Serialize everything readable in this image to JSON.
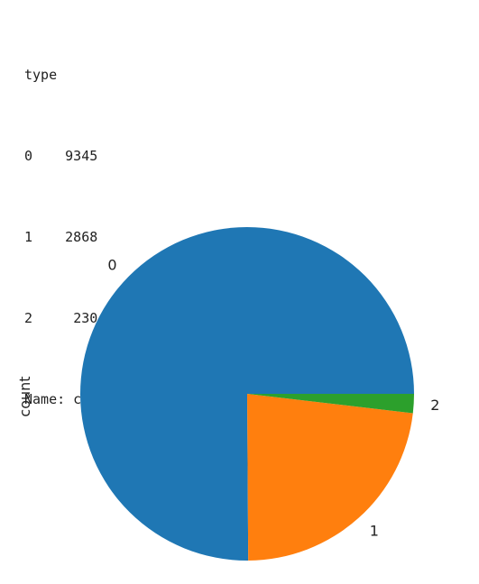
{
  "output": {
    "header": "type",
    "rows": [
      {
        "index": "0",
        "value": "9345"
      },
      {
        "index": "1",
        "value": "2868"
      },
      {
        "index": "2",
        "value": "230"
      }
    ],
    "footer": "Name: count, dtype: int64"
  },
  "chart_data": {
    "type": "pie",
    "ylabel": "count",
    "title": "",
    "categories": [
      "0",
      "1",
      "2"
    ],
    "values": [
      9345,
      2868,
      230
    ],
    "colors": [
      "#1f77b4",
      "#ff7f0e",
      "#2ca02c"
    ],
    "start_angle_deg": 0,
    "direction": "counterclockwise"
  }
}
